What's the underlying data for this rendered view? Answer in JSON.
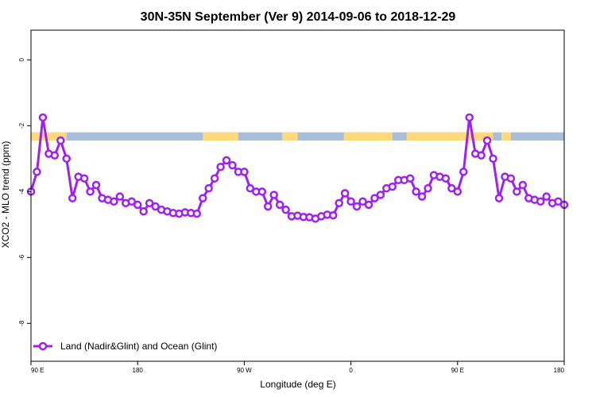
{
  "chart_data": {
    "type": "line",
    "title": "30N-35N September (Ver 9)   2014-09-06 to 2018-12-29",
    "xlabel": "Longitude (deg E)",
    "ylabel": "XCO2 - MLO trend (ppm)",
    "xlim": [
      90,
      540
    ],
    "ylim": [
      -9.15,
      0.9
    ],
    "x_tick_values": [
      90,
      180,
      270,
      360,
      450,
      540
    ],
    "x_tick_labels": [
      "90 E",
      "180",
      "90 W",
      "0",
      "90 E",
      "180"
    ],
    "y_tick_values": [
      0,
      -2,
      -4,
      -6,
      -8
    ],
    "y_tick_labels": [
      "0",
      "-2",
      "-4",
      "-6",
      "-8"
    ],
    "grid": false,
    "legend_position": "bottom-left",
    "surface_strip": {
      "y_top": -2.2,
      "y_bottom": -2.45,
      "land_color": "#FFD97A",
      "ocean_color": "#A9BEDB",
      "land_ranges": [
        [
          90,
          120
        ],
        [
          235,
          265
        ],
        [
          302,
          315
        ],
        [
          354,
          395
        ],
        [
          407,
          480
        ],
        [
          487,
          495
        ]
      ]
    },
    "series": [
      {
        "name": "Land (Nadir&Glint) and Ocean (Glint)",
        "color": "#A020F0",
        "x": [
          90,
          95,
          100,
          105,
          110,
          115,
          120,
          125,
          130,
          135,
          140,
          145,
          150,
          155,
          160,
          165,
          170,
          175,
          180,
          185,
          190,
          195,
          200,
          205,
          210,
          215,
          220,
          225,
          230,
          235,
          240,
          245,
          250,
          255,
          260,
          265,
          270,
          275,
          280,
          285,
          290,
          295,
          300,
          305,
          310,
          315,
          320,
          325,
          330,
          335,
          340,
          345,
          350,
          355,
          360,
          365,
          370,
          375,
          380,
          385,
          390,
          395,
          400,
          405,
          410,
          415,
          420,
          425,
          430,
          435,
          440,
          445,
          450,
          455,
          460,
          465,
          470,
          475,
          480,
          485,
          490,
          495,
          500,
          505,
          510,
          515,
          520,
          525,
          530,
          535,
          540
        ],
        "y": [
          -4.0,
          -3.4,
          -1.75,
          -2.85,
          -2.9,
          -2.45,
          -3.0,
          -4.2,
          -3.55,
          -3.6,
          -4.0,
          -3.8,
          -4.2,
          -4.25,
          -4.3,
          -4.15,
          -4.35,
          -4.3,
          -4.4,
          -4.6,
          -4.35,
          -4.45,
          -4.55,
          -4.6,
          -4.65,
          -4.67,
          -4.63,
          -4.65,
          -4.67,
          -4.2,
          -3.9,
          -3.6,
          -3.25,
          -3.05,
          -3.2,
          -3.4,
          -3.4,
          -3.9,
          -4.0,
          -4.0,
          -4.45,
          -4.1,
          -4.4,
          -4.55,
          -4.75,
          -4.73,
          -4.77,
          -4.78,
          -4.82,
          -4.75,
          -4.7,
          -4.72,
          -4.35,
          -4.05,
          -4.3,
          -4.45,
          -4.3,
          -4.4,
          -4.2,
          -4.1,
          -3.9,
          -3.85,
          -3.65,
          -3.65,
          -3.6,
          -4.0,
          -4.15,
          -3.9,
          -3.5,
          -3.55,
          -3.6,
          -3.9,
          -4.0,
          -3.4,
          -1.75,
          -2.85,
          -2.9,
          -2.45,
          -3.0,
          -4.2,
          -3.55,
          -3.6,
          -4.0,
          -3.8,
          -4.2,
          -4.25,
          -4.3,
          -4.15,
          -4.35,
          -4.3,
          -4.4
        ]
      }
    ]
  }
}
